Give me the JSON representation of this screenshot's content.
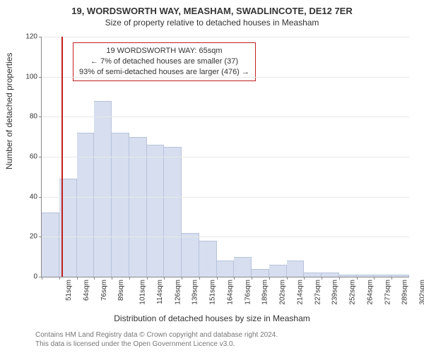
{
  "title": "19, WORDSWORTH WAY, MEASHAM, SWADLINCOTE, DE12 7ER",
  "subtitle": "Size of property relative to detached houses in Measham",
  "ylabel": "Number of detached properties",
  "xlabel": "Distribution of detached houses by size in Measham",
  "footer_line1": "Contains HM Land Registry data © Crown copyright and database right 2024.",
  "footer_line2": "This data is licensed under the Open Government Licence v3.0.",
  "chart": {
    "type": "histogram",
    "background_color": "#ffffff",
    "grid_color": "#e8e8e8",
    "axis_color": "#888888",
    "bar_fill": "#d6deef",
    "bar_border": "#b8c3db",
    "marker_color": "#c02020",
    "ylim": [
      0,
      120
    ],
    "ytick_step": 20,
    "yticks": [
      0,
      20,
      40,
      60,
      80,
      100,
      120
    ],
    "xcategories": [
      "51sqm",
      "64sqm",
      "76sqm",
      "89sqm",
      "101sqm",
      "114sqm",
      "126sqm",
      "139sqm",
      "151sqm",
      "164sqm",
      "176sqm",
      "189sqm",
      "202sqm",
      "214sqm",
      "227sqm",
      "239sqm",
      "252sqm",
      "264sqm",
      "277sqm",
      "289sqm",
      "302sqm"
    ],
    "values": [
      32,
      49,
      72,
      88,
      72,
      70,
      66,
      65,
      22,
      18,
      8,
      10,
      4,
      6,
      8,
      2,
      2,
      1,
      1,
      1,
      1
    ],
    "marker_value": 65,
    "x_start": 51,
    "x_step": 12.5,
    "annotation_box": {
      "line1": "19 WORDSWORTH WAY: 65sqm",
      "line2": "← 7% of detached houses are smaller (37)",
      "line3": "93% of semi-detached houses are larger (476) →",
      "border_color": "#c02020",
      "background": "#ffffff",
      "fontsize": 11
    },
    "fonts": {
      "title_size": 13,
      "subtitle_size": 12,
      "label_size": 12,
      "tick_size": 10
    }
  }
}
